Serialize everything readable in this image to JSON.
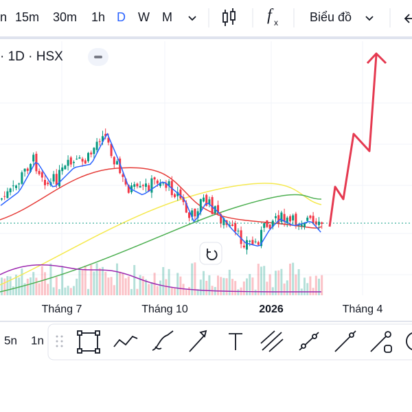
{
  "toolbar": {
    "intervals": [
      "n",
      "15m",
      "30m",
      "1h",
      "D",
      "W",
      "M"
    ],
    "indicator_icon": [
      "f",
      "x"
    ],
    "chart_type": "Biểu đồ"
  },
  "symbol": {
    "label": "· 1D · HSX"
  },
  "x_axis": {
    "labels": [
      "Tháng 7",
      "Tháng 10",
      "2026",
      "Tháng 4"
    ]
  },
  "bottom_toolbar": {
    "ranges": [
      "5n",
      "1n"
    ]
  }
}
